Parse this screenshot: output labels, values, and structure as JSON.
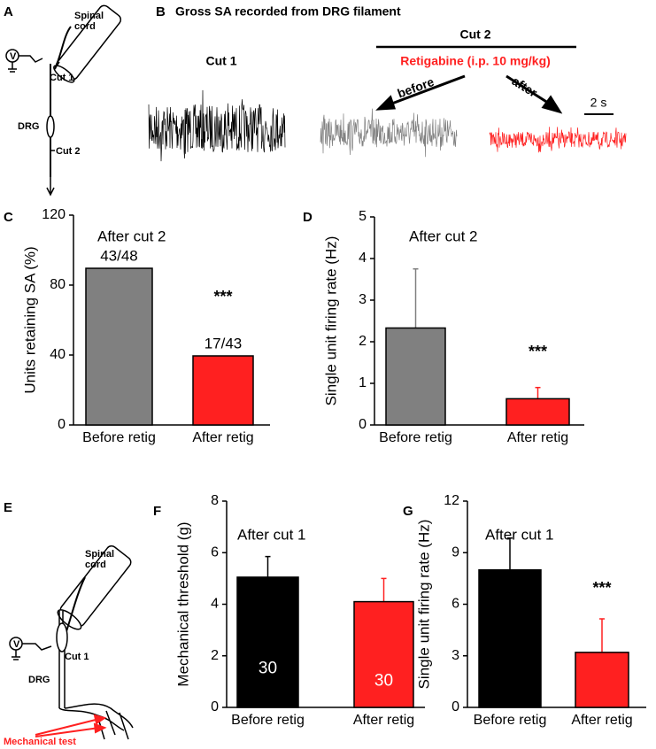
{
  "panel_labels": [
    "A",
    "B",
    "C",
    "D",
    "E",
    "F",
    "G"
  ],
  "diagram_a": {
    "spinal_cord": [
      "Spinal",
      "cord"
    ],
    "v": "V",
    "cut1": "Cut 1",
    "drg": "DRG",
    "cut2": "Cut 2"
  },
  "panel_b": {
    "title": "Gross SA recorded from DRG filament",
    "cut1": "Cut 1",
    "cut2": "Cut 2",
    "drug": "Retigabine (i.p. 10 mg/kg)",
    "before": "before",
    "after": "after",
    "scale": "2 s"
  },
  "diagram_e": {
    "spinal_cord": [
      "Spinal",
      "cord"
    ],
    "v": "V",
    "cut1": "Cut 1",
    "drg": "DRG",
    "test": "Mechanical test"
  },
  "chart_data": [
    {
      "type": "bar",
      "annotation": "After cut 2",
      "ylabel": "Units retaining SA (%)",
      "categories": [
        "Before retig",
        "After retig"
      ],
      "values": [
        89.6,
        39.5
      ],
      "bar_labels": [
        "43/48",
        "17/43"
      ],
      "colors": [
        "#808080",
        "#ff2020"
      ],
      "ylim": [
        0,
        120
      ],
      "yticks": [
        0,
        40,
        80,
        120
      ],
      "significance": "***"
    },
    {
      "type": "bar",
      "annotation": "After cut 2",
      "ylabel": "Single unit firing rate (Hz)",
      "categories": [
        "Before retig",
        "After retig"
      ],
      "values": [
        2.33,
        0.63
      ],
      "errors": [
        1.42,
        0.27
      ],
      "colors": [
        "#808080",
        "#ff2020"
      ],
      "ylim": [
        0,
        5
      ],
      "yticks": [
        0,
        1,
        2,
        3,
        4,
        5
      ],
      "significance": "***"
    },
    {
      "type": "bar",
      "annotation": "After cut 1",
      "ylabel": "Mechanical threshold (g)",
      "categories": [
        "Before retig",
        "After retig"
      ],
      "values": [
        5.05,
        4.1
      ],
      "errors": [
        0.8,
        0.9
      ],
      "n_labels": [
        "30",
        "30"
      ],
      "colors": [
        "#000000",
        "#ff2020"
      ],
      "ylim": [
        0,
        8
      ],
      "yticks": [
        0,
        2,
        4,
        6,
        8
      ]
    },
    {
      "type": "bar",
      "annotation": "After cut 1",
      "ylabel": "Single unit firing rate (Hz)",
      "categories": [
        "Before retig",
        "After retig"
      ],
      "values": [
        8.0,
        3.2
      ],
      "errors": [
        1.85,
        1.95
      ],
      "colors": [
        "#000000",
        "#ff2020"
      ],
      "ylim": [
        0,
        12
      ],
      "yticks": [
        0,
        3,
        6,
        9,
        12
      ],
      "significance": "***"
    }
  ]
}
